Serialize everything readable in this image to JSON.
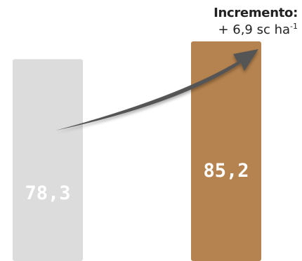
{
  "chart_data": {
    "type": "bar",
    "categories": [
      "",
      ""
    ],
    "values": [
      78.3,
      85.2
    ],
    "value_labels": [
      "78,3",
      "85,2"
    ],
    "bar_colors": [
      "#dcdcdc",
      "#b5834f"
    ],
    "ylim": [
      0,
      98
    ],
    "grid": false,
    "annotation": {
      "title": "Incremento:",
      "value_text": "+ 6,9 sc ha",
      "superscript": "-1",
      "arrow_color": "#555555",
      "increment_value": 6.9
    }
  }
}
